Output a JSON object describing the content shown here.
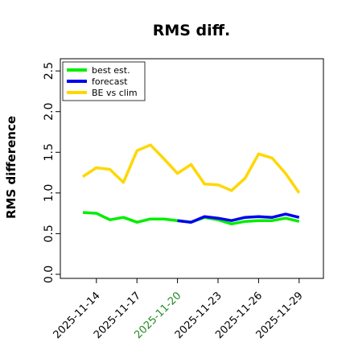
{
  "chart_data": {
    "type": "line",
    "title": "RMS diff.",
    "xlabel": "",
    "ylabel": "RMS difference",
    "x": [
      "2025-11-13",
      "2025-11-14",
      "2025-11-15",
      "2025-11-16",
      "2025-11-17",
      "2025-11-18",
      "2025-11-19",
      "2025-11-20",
      "2025-11-21",
      "2025-11-22",
      "2025-11-23",
      "2025-11-24",
      "2025-11-25",
      "2025-11-26",
      "2025-11-27",
      "2025-11-28",
      "2025-11-29"
    ],
    "xticks": [
      "2025-11-14",
      "2025-11-17",
      "2025-11-20",
      "2025-11-23",
      "2025-11-26",
      "2025-11-29"
    ],
    "xtick_colors": [
      "#000000",
      "#000000",
      "#228B22",
      "#000000",
      "#000000",
      "#000000"
    ],
    "ylim": [
      -0.05,
      2.65
    ],
    "yticks": [
      "0.0",
      "0.5",
      "1.0",
      "1.5",
      "2.0",
      "2.5"
    ],
    "ytick_values": [
      0.0,
      0.5,
      1.0,
      1.5,
      2.0,
      2.5
    ],
    "grid": false,
    "legend_position": "top-left",
    "series": [
      {
        "name": "best est.",
        "color": "#00ee00",
        "x": [
          "2025-11-13",
          "2025-11-14",
          "2025-11-15",
          "2025-11-16",
          "2025-11-17",
          "2025-11-18",
          "2025-11-19",
          "2025-11-20",
          "2025-11-21",
          "2025-11-22",
          "2025-11-23",
          "2025-11-24",
          "2025-11-25",
          "2025-11-26",
          "2025-11-27",
          "2025-11-28",
          "2025-11-29"
        ],
        "values": [
          0.76,
          0.75,
          0.67,
          0.7,
          0.64,
          0.68,
          0.68,
          0.66,
          0.64,
          0.7,
          0.67,
          0.62,
          0.65,
          0.66,
          0.66,
          0.69,
          0.65
        ]
      },
      {
        "name": "forecast",
        "color": "#0000ee",
        "x": [
          "2025-11-20",
          "2025-11-21",
          "2025-11-22",
          "2025-11-23",
          "2025-11-24",
          "2025-11-25",
          "2025-11-26",
          "2025-11-27",
          "2025-11-28",
          "2025-11-29"
        ],
        "values": [
          0.66,
          0.64,
          0.71,
          0.69,
          0.66,
          0.7,
          0.71,
          0.7,
          0.74,
          0.7
        ]
      },
      {
        "name": "BE vs clim",
        "color": "#ffd700",
        "x": [
          "2025-11-13",
          "2025-11-14",
          "2025-11-15",
          "2025-11-16",
          "2025-11-17",
          "2025-11-18",
          "2025-11-19",
          "2025-11-20",
          "2025-11-21",
          "2025-11-22",
          "2025-11-23",
          "2025-11-24",
          "2025-11-25",
          "2025-11-26",
          "2025-11-27",
          "2025-11-28",
          "2025-11-29"
        ],
        "values": [
          1.2,
          1.31,
          1.29,
          1.13,
          1.52,
          1.59,
          1.42,
          1.24,
          1.35,
          1.11,
          1.1,
          1.03,
          1.18,
          1.48,
          1.43,
          1.24,
          1.0
        ]
      }
    ]
  }
}
